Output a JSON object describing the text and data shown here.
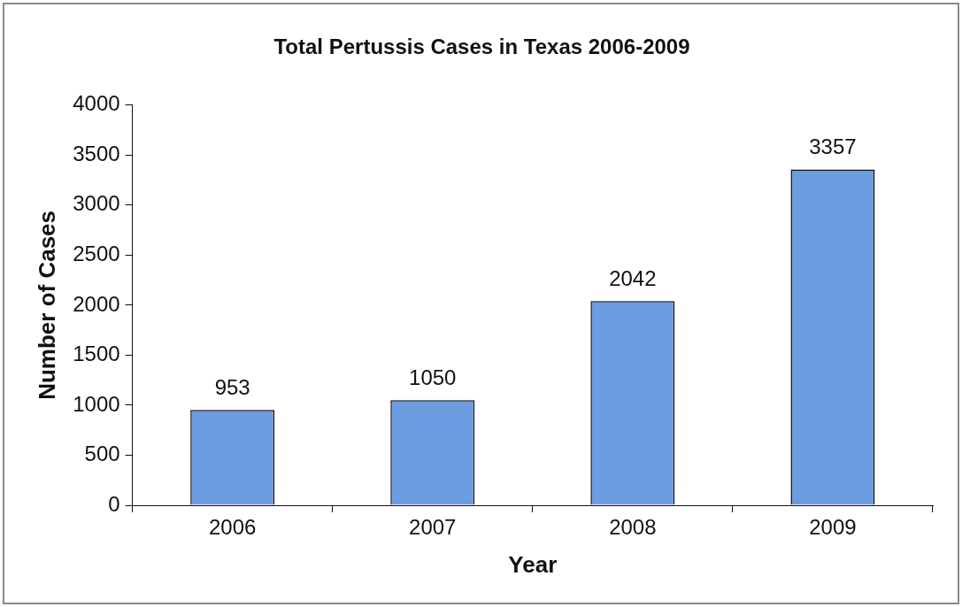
{
  "chart_data": {
    "type": "bar",
    "title": "Total Pertussis Cases in Texas 2006-2009",
    "xlabel": "Year",
    "ylabel": "Number of Cases",
    "categories": [
      "2006",
      "2007",
      "2008",
      "2009"
    ],
    "values": [
      953,
      1050,
      2042,
      3357
    ],
    "color": "#6d9de0",
    "ylim": [
      0,
      4000
    ],
    "yticks": [
      0,
      500,
      1000,
      1500,
      2000,
      2500,
      3000,
      3500,
      4000
    ],
    "data_labels": true
  }
}
